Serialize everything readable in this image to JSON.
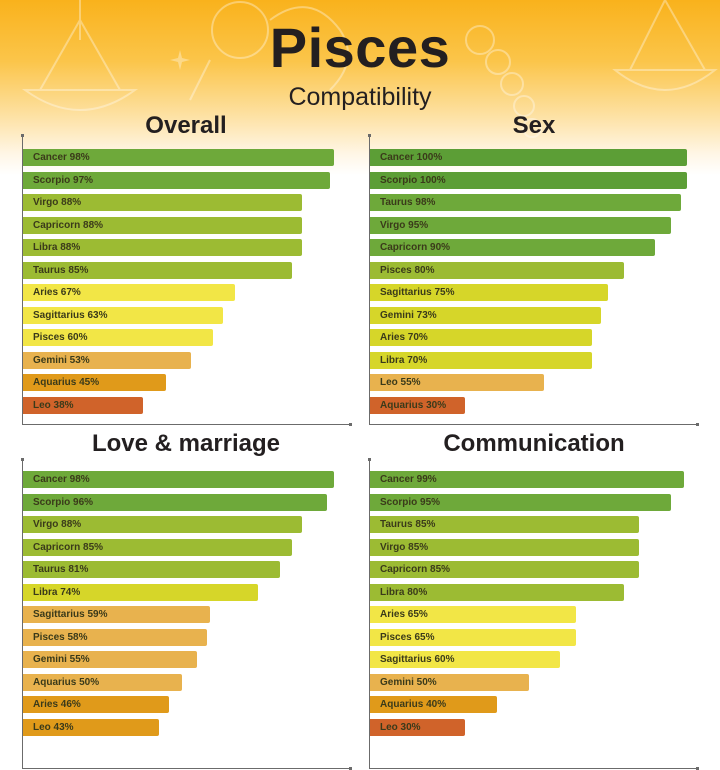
{
  "header": {
    "title": "Pisces",
    "subtitle": "Compatibility"
  },
  "colors": {
    "dark_green": "#5c9e36",
    "green": "#6ea93a",
    "lime": "#9cbb33",
    "yellow_green": "#d6d629",
    "yellow": "#f2e646",
    "light_orange": "#e8b24e",
    "orange": "#e09a1a",
    "red_orange": "#d0632a"
  },
  "chart_data": [
    {
      "type": "bar",
      "orientation": "horizontal",
      "title": "Overall",
      "categories": [
        "Cancer",
        "Scorpio",
        "Virgo",
        "Capricorn",
        "Libra",
        "Taurus",
        "Aries",
        "Sagittarius",
        "Pisces",
        "Gemini",
        "Aquarius",
        "Leo"
      ],
      "values": [
        98,
        97,
        88,
        88,
        88,
        85,
        67,
        63,
        60,
        53,
        45,
        38
      ],
      "labels": [
        "Cancer 98%",
        "Scorpio 97%",
        "Virgo 88%",
        "Capricorn 88%",
        "Libra 88%",
        "Taurus 85%",
        "Aries 67%",
        "Sagittarius 63%",
        "Pisces 60%",
        "Gemini 53%",
        "Aquarius 45%",
        "Leo 38%"
      ],
      "bar_colors": [
        "#6ea93a",
        "#6ea93a",
        "#9cbb33",
        "#9cbb33",
        "#9cbb33",
        "#9cbb33",
        "#f2e646",
        "#f2e646",
        "#f2e646",
        "#e8b24e",
        "#e09a1a",
        "#d0632a"
      ],
      "xlim": [
        0,
        100
      ],
      "unit": "%"
    },
    {
      "type": "bar",
      "orientation": "horizontal",
      "title": "Sex",
      "categories": [
        "Cancer",
        "Scorpio",
        "Taurus",
        "Virgo",
        "Capricorn",
        "Pisces",
        "Sagittarius",
        "Gemini",
        "Aries",
        "Libra",
        "Leo",
        "Aquarius"
      ],
      "values": [
        100,
        100,
        98,
        95,
        90,
        80,
        75,
        73,
        70,
        70,
        55,
        30
      ],
      "labels": [
        "Cancer 100%",
        "Scorpio 100%",
        "Taurus 98%",
        "Virgo 95%",
        "Capricorn 90%",
        "Pisces 80%",
        "Sagittarius 75%",
        "Gemini 73%",
        "Aries 70%",
        "Libra 70%",
        "Leo 55%",
        "Aquarius 30%"
      ],
      "bar_colors": [
        "#5c9e36",
        "#5c9e36",
        "#6ea93a",
        "#6ea93a",
        "#6ea93a",
        "#9cbb33",
        "#d6d629",
        "#d6d629",
        "#d6d629",
        "#d6d629",
        "#e8b24e",
        "#d0632a"
      ],
      "xlim": [
        0,
        100
      ],
      "unit": "%"
    },
    {
      "type": "bar",
      "orientation": "horizontal",
      "title": "Love & marriage",
      "categories": [
        "Cancer",
        "Scorpio",
        "Virgo",
        "Capricorn",
        "Taurus",
        "Libra",
        "Sagittarius",
        "Pisces",
        "Gemini",
        "Aquarius",
        "Aries",
        "Leo"
      ],
      "values": [
        98,
        96,
        88,
        85,
        81,
        74,
        59,
        58,
        55,
        50,
        46,
        43
      ],
      "labels": [
        "Cancer 98%",
        "Scorpio 96%",
        "Virgo 88%",
        "Capricorn 85%",
        "Taurus 81%",
        "Libra 74%",
        "Sagittarius 59%",
        "Pisces 58%",
        "Gemini 55%",
        "Aquarius 50%",
        "Aries 46%",
        "Leo 43%"
      ],
      "bar_colors": [
        "#6ea93a",
        "#6ea93a",
        "#9cbb33",
        "#9cbb33",
        "#9cbb33",
        "#d6d629",
        "#e8b24e",
        "#e8b24e",
        "#e8b24e",
        "#e8b24e",
        "#e09a1a",
        "#e09a1a"
      ],
      "xlim": [
        0,
        100
      ],
      "unit": "%"
    },
    {
      "type": "bar",
      "orientation": "horizontal",
      "title": "Communication",
      "categories": [
        "Cancer",
        "Scorpio",
        "Taurus",
        "Virgo",
        "Capricorn",
        "Libra",
        "Aries",
        "Pisces",
        "Sagittarius",
        "Gemini",
        "Aquarius",
        "Leo"
      ],
      "values": [
        99,
        95,
        85,
        85,
        85,
        80,
        65,
        65,
        60,
        50,
        40,
        30
      ],
      "labels": [
        "Cancer 99%",
        "Scorpio 95%",
        "Taurus 85%",
        "Virgo 85%",
        "Capricorn 85%",
        "Libra 80%",
        "Aries 65%",
        "Pisces 65%",
        "Sagittarius 60%",
        "Gemini 50%",
        "Aquarius 40%",
        "Leo 30%"
      ],
      "bar_colors": [
        "#6ea93a",
        "#6ea93a",
        "#9cbb33",
        "#9cbb33",
        "#9cbb33",
        "#9cbb33",
        "#f2e646",
        "#f2e646",
        "#f2e646",
        "#e8b24e",
        "#e09a1a",
        "#d0632a"
      ],
      "xlim": [
        0,
        100
      ],
      "unit": "%"
    }
  ]
}
